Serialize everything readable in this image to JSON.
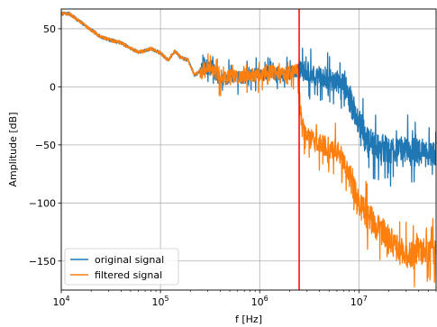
{
  "chart_data": {
    "type": "line",
    "xlabel": "f [Hz]",
    "ylabel": "Amplitude [dB]",
    "xscale": "log",
    "xlim": [
      10000,
      60000000
    ],
    "ylim": [
      -175,
      67
    ],
    "grid": true,
    "legend_position": "lower-left",
    "x_tick_labels": [
      {
        "base": "10",
        "exp": "4",
        "value": 10000
      },
      {
        "base": "10",
        "exp": "5",
        "value": 100000
      },
      {
        "base": "10",
        "exp": "6",
        "value": 1000000
      },
      {
        "base": "10",
        "exp": "7",
        "value": 10000000
      }
    ],
    "y_tick_labels": [
      {
        "label": "50",
        "value": 50
      },
      {
        "label": "0",
        "value": 0
      },
      {
        "label": "−50",
        "value": -50
      },
      {
        "label": "−100",
        "value": -100
      },
      {
        "label": "−150",
        "value": -150
      }
    ],
    "cutoff_frequency_hz": 2500000,
    "cutoff_color": "#ff0000",
    "series": [
      {
        "name": "original signal",
        "color": "#1f77b4",
        "x": [
          10000,
          12000,
          15000,
          20000,
          25000,
          32000,
          40000,
          50000,
          60000,
          70000,
          80000,
          100000,
          120000,
          140000,
          160000,
          190000,
          220000,
          270000,
          330000,
          400000,
          500000,
          650000,
          800000,
          1000000,
          1300000,
          1600000,
          2000000,
          2500000,
          3000000,
          3500000,
          4000000,
          4500000,
          5000000,
          5500000,
          6000000,
          7000000,
          8000000,
          9000000,
          10000000,
          12000000,
          15000000,
          20000000,
          25000000,
          30000000,
          40000000,
          50000000,
          60000000
        ],
        "y": [
          63,
          63,
          57,
          49,
          43,
          40,
          38,
          33,
          30,
          31,
          33,
          29,
          23,
          31,
          25,
          23,
          10,
          15,
          16,
          6,
          9,
          8,
          10,
          10,
          13,
          10,
          12,
          14,
          12,
          10,
          9,
          8,
          6,
          5,
          4,
          2,
          -10,
          -20,
          -30,
          -45,
          -50,
          -55,
          -52,
          -55,
          -57,
          -60,
          -58
        ]
      },
      {
        "name": "filtered signal",
        "color": "#ff7f0e",
        "x": [
          10000,
          12000,
          15000,
          20000,
          25000,
          32000,
          40000,
          50000,
          60000,
          70000,
          80000,
          100000,
          120000,
          140000,
          160000,
          190000,
          220000,
          270000,
          330000,
          400000,
          500000,
          650000,
          800000,
          1000000,
          1300000,
          1600000,
          2000000,
          2400000,
          2600000,
          2800000,
          3200000,
          3700000,
          4200000,
          5000000,
          6000000,
          7000000,
          8000000,
          9000000,
          10000000,
          12000000,
          15000000,
          20000000,
          25000000,
          30000000,
          40000000,
          50000000,
          60000000
        ],
        "y": [
          63,
          63,
          57,
          49,
          43,
          40,
          38,
          33,
          30,
          31,
          33,
          29,
          23,
          31,
          25,
          23,
          10,
          15,
          16,
          6,
          9,
          8,
          10,
          10,
          13,
          10,
          12,
          14,
          -25,
          -40,
          -45,
          -47,
          -50,
          -52,
          -55,
          -62,
          -75,
          -90,
          -100,
          -110,
          -120,
          -130,
          -140,
          -145,
          -140,
          -145,
          -140
        ]
      }
    ]
  }
}
